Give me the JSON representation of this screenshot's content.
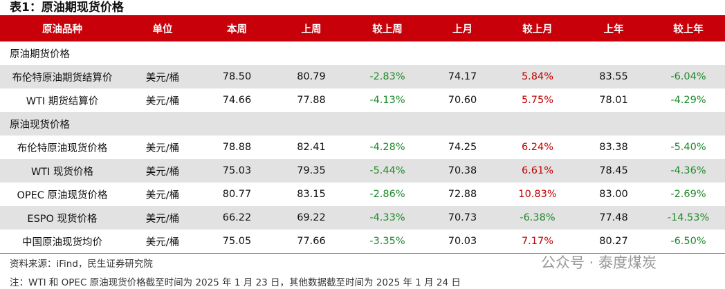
{
  "title": "表1：原油期现货价格",
  "table": {
    "header": [
      "原油品种",
      "单位",
      "本周",
      "上周",
      "较上周",
      "上月",
      "较上月",
      "上年",
      "较上年"
    ],
    "sections": [
      {
        "title": "原油期货价格",
        "rows": [
          [
            "布伦特原油期货结算价",
            "美元/桶",
            "78.50",
            "80.79",
            "-2.83%",
            "74.17",
            "5.84%",
            "83.55",
            "-6.04%"
          ],
          [
            "WTI 期货结算价",
            "美元/桶",
            "74.66",
            "77.88",
            "-4.13%",
            "70.60",
            "5.75%",
            "78.01",
            "-4.29%"
          ]
        ]
      },
      {
        "title": "原油现货价格",
        "rows": [
          [
            "布伦特原油现货价格",
            "美元/桶",
            "78.88",
            "82.41",
            "-4.28%",
            "74.25",
            "6.24%",
            "83.38",
            "-5.40%"
          ],
          [
            "WTI 现货价格",
            "美元/桶",
            "75.03",
            "79.35",
            "-5.44%",
            "70.38",
            "6.61%",
            "78.45",
            "-4.36%"
          ],
          [
            "OPEC 原油现货价格",
            "美元/桶",
            "80.77",
            "83.15",
            "-2.86%",
            "72.88",
            "10.83%",
            "83.00",
            "-2.69%"
          ],
          [
            "ESPO 现货价格",
            "美元/桶",
            "66.22",
            "69.22",
            "-4.33%",
            "70.73",
            "-6.38%",
            "77.48",
            "-14.53%"
          ],
          [
            "中国原油现货均价",
            "美元/桶",
            "75.05",
            "77.66",
            "-3.35%",
            "70.03",
            "7.17%",
            "80.27",
            "-6.50%"
          ]
        ]
      }
    ]
  },
  "source": "资料来源：iFind，民生证券研究院",
  "note": "注：WTI 和 OPEC 原油现货价格截至时间为 2025 年 1 月 23 日，其他数据截至时间为 2025 年 1 月 24 日",
  "watermark": "公众号 · 泰度煤炭"
}
